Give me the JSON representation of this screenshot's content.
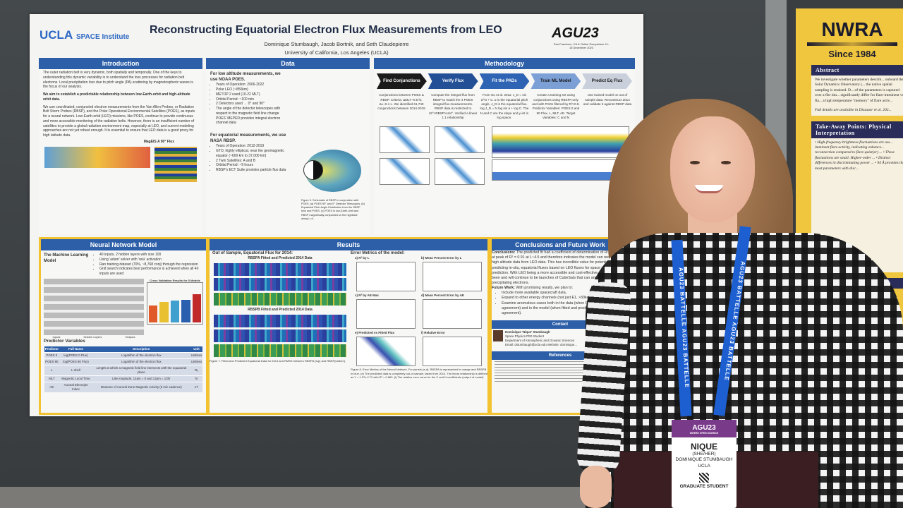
{
  "poster": {
    "logo_ucla": "UCLA",
    "logo_institute": "SPACE Institute",
    "title": "Reconstructing Equatorial Electron Flux Measurements from LEO",
    "authors": "Dominique Stumbaugh, Jacob Bortnik, and Seth Claudepierre",
    "affiliation": "University of California, Los Angeles (UCLA)",
    "agu_logo": "AGU23",
    "agu_sub": "San Francisco, CA & Online Everywhere 11-15 December 2023",
    "introduction": {
      "heading": "Introduction",
      "p1": "The outer radiation belt is very dynamic, both spatially and temporally. One of the keys to understanding this dynamic variability is to understand the loss processes for radiation belt electrons. Local precipitation loss due to pitch angle (PA) scattering by magnetospheric waves is the focus of our analysis.",
      "p1_bold": "We aim to establish a predictable relationship between low-Earth-orbit and high-altitude orbit data.",
      "p2": "We use coordinated, conjuncted electron measurements from the Van Allen Probes, or Radiation Belt Storm Probes (RBSP), and the Polar Operational Environmental Satellites (POES), as inputs for a neural network. Low-Earth-orbit (LEO) missions, like POES, continue to provide continuous and more accessible monitoring of the radiation belts. However, there is an insufficient number of satellites to provide a global radiation environment map, especially at LEO, and current modeling approaches are not yet robust enough. It is essential to ensure that LEO data is a good proxy for high latitude data.",
      "fig_label": "MagEIS A 90° Flux"
    },
    "data": {
      "heading": "Data",
      "low_title": "For low altitude measurements, we use NOAA POES.",
      "low_items": [
        "Years of Operation: 2006-2022",
        "Polar LEO (~850km)",
        "METOP 2 used (10-22 MLT)",
        "Orbital Period: ~100 min",
        "2 Detectors used → 0° and 90°",
        "The angle of the detector telescopes with respect to the magnetic field line change POES' MEPED provides integral electron channel data"
      ],
      "eq_title": "For equatorial measurements, we use NASA RBSP.",
      "eq_items": [
        "Years of Operation: 2012-2019",
        "GTO, highly elliptical, near the geomagnetic equator (~600 km to 37,000 km)",
        "2 Twin Satellites: A and B",
        "Orbital Period: ~9 hours",
        "RBSP's ECT Suite provides particle flux data"
      ],
      "caption": "Figure 3. Schematic of RBSP in conjunction with POES. (a) POES 90° and 0° Detector Telescopes. (b) Equatorial Pitch Angle Distribution from the RBSP bins and POES. (c) POES in low-Earth-orbit and RBSP magnetically conjuncted on the nightside along L=4."
    },
    "methodology": {
      "heading": "Methodology",
      "steps": [
        {
          "label": "Find Conjunctions",
          "text": "Conjunctions between POES & RBSP. Criteria: ΔMLT~0.5 hr, ΔL~0.1 L. We identified 61,740 conjunctions between 2014-2019"
        },
        {
          "label": "Verify Flux",
          "text": "Compute the integral flux from RBSP to match the 4 POES integral flux measurements. RBSP data is restricted to 16°>RBSP>164°. Verified a linear 1:1 relationship"
        },
        {
          "label": "Fit the PADs",
          "text": "From Gu et al. 2011: J_D = sin α^N + C. α is the equatorial pitch angle, J_D is the equatorial flux. log J_D = N log sin α + log C. The N and C are the slope and y-int in log space."
        },
        {
          "label": "Train ML Model",
          "text": "Create a training set using conjunctions using RBSPA only and with PADs filtered by R²>0.8. Predictor Variables: POES 0 and 90 Flux, L, MLT, AE. Target Variables: C and N"
        },
        {
          "label": "Predict Eq Flux",
          "text": "Use trained model on out of sample data. Reconstruct 2014 and validate it against RBSP data"
        }
      ],
      "colors": [
        "#1a1a1a",
        "#234f96",
        "#2f64b4",
        "#7c9fd6",
        "#c9d0dc"
      ]
    },
    "neural_network": {
      "heading": "Neural Network Model",
      "subheading": "The Machine Learning Model",
      "items": [
        "40 inputs, 2 hidden layers with size 100",
        "Using 'adam' solver with 'relu' activation",
        "Ran training dataset (70%, ~8,768 conj) through the regression",
        "Grid search indicates best performance is achieved when all 40 inputs are used"
      ],
      "chart_title": "Cross Validation Results for 5 Models",
      "diagram_labels": [
        "Inputs",
        "Hidden Layers",
        "Outputs"
      ],
      "predictor_title": "Predictor Variables",
      "table_headers": [
        "Predictor",
        "Full Name",
        "Description",
        "Unit"
      ],
      "table_rows": [
        [
          "POES 0",
          "log(POES 0 Flux)",
          "Logarithm of the electron flux",
          "Unitless"
        ],
        [
          "POES 90",
          "log(POES 90 Flux)",
          "Logarithm of the electron flux",
          "Unitless"
        ],
        [
          "L",
          "L-shell",
          "Length at which a magnetic field line intersects with the equatorial plane",
          "Rₑ"
        ],
        [
          "MLT",
          "Magnetic Local Time",
          "Like longitude, 12am = 0 and 12pm = 12hr",
          "hr"
        ],
        [
          "AE",
          "Auroral Electrojet Index",
          "Measure of Auroral Zone Magnetic Activity (5 min cadence)",
          "nT"
        ]
      ]
    },
    "results": {
      "heading": "Results",
      "left_title": "Out of Sample, Equatorial Flux for 2014:",
      "rbspa_title": "RBSPA Fitted and Predicted 2014 Data",
      "rbspb_title": "RBSPB Fitted and Predicted 2014 Data",
      "fig7": "Figure 7. Fitted and Predicted Equatorial Data for 2014 and RMSE between RBSPA (top) and RBSP(bottom).",
      "right_title": "Error Metrics of the model:",
      "panels": [
        "a) R² by L",
        "b) Mean Percent Error by L",
        "c) R² by AE Max",
        "d) Mean Percent Error by AE",
        "e) Predicted vs Fitted Flux",
        "f) Relative Error"
      ],
      "fig8": "Figure 8. Error Metrics of the Neural Network. For panels (a-d), RBSPA is represented in orange and RBSPB in blue. (e) The predicted data is completely out-of-sample, taken from 2014. The linear relationship is defined as Y = 1.37x-2.72 with R² = 0.863. (f) The relative error curve for the C and N coefficients (output of model)"
    },
    "conclusions": {
      "heading": "Conclusions and Future Work",
      "label": "Conclusions:",
      "text": "The predicted fit had a coefficient of determination of R² = 0.86, with at peak of R² = 0.91 at L~4.5 and therefore indicates the model can reconstruct high altitude data from LEO data. This has incredible value for potentially predicting in-situ, equatorial fluxes based on LEO fluxes for space weather prediction. With LEO being a more accessible and cost-effective option, there have been and will continue to be launches of CubeSats that can and will measure precipitating electrons.",
      "future_label": "Future Work:",
      "future_intro": "With promising results, we plan to:",
      "future_items": [
        "Include more available spacecraft data,",
        "Expand to other energy channels (not just E1, >30keV)",
        "Examine anomalous cases both in the data (when POES and RBSP aren't in agreement) and in the model (when fitted and predicted aren't in agreement)."
      ],
      "contact_heading": "Contact",
      "contact_name": "Dominique 'Nique' Stumbaugh",
      "contact_role": "Space Physics PhD Student",
      "contact_dept": "Department of Atmospheric and Oceanic Sciences",
      "contact_email": "Email: dstumbaugh@ucla.edu Website: dominique...",
      "references_heading": "References"
    }
  },
  "neighbor_poster": {
    "logo": "NWRA",
    "since": "Since 1984",
    "abstract_heading": "Abstract",
    "abstract_text": "We investigate whether parameters describ... onboard the Solar Dynamics Observatory (... the native spatial sampling is retained. D... of the parameters is captured over a 6hr tim... significantly differ for flare-imminent vs. fla... a high temperature \"memory\" of flare activ...",
    "full_details": "Full details are available in Dissauer et al. 202...",
    "takeaway_heading": "Take-Away Points: Physical Interpretation",
    "takeaway_text": "• High-frequency brightness fluctuations are ass... imminent flare activity, indicating enhance... reconnection compared to flare-quiet(er) ... • These fluctuations are small. Higher-order ... • Distinct differences in discriminating power ... • 94 Å provides the most parameters with disc...",
    "lower_heading": "(AARP) Data"
  },
  "badge": {
    "event": "AGU23",
    "event_sub": "WHERE OPEN SCIENCE",
    "name": "NIQUE",
    "pronouns": "(SHE/HER)",
    "full_name": "DOMINIQUE STUMBAUGH",
    "org": "UCLA",
    "role": "GRADUATE STUDENT"
  },
  "lanyard_text": "AGU23 BATTELLE AGU23 BATTELLE"
}
